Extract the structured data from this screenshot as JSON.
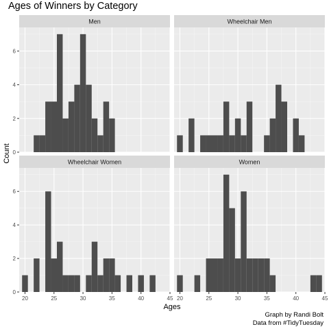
{
  "chart_data": {
    "type": "bar",
    "title": "Ages of Winners by Category",
    "xlabel": "Ages",
    "ylabel": "Count",
    "xlim": [
      19,
      45
    ],
    "ylim": [
      0,
      7.4
    ],
    "x_ticks": [
      20,
      25,
      30,
      35,
      40,
      45
    ],
    "y_ticks": [
      0,
      2,
      4,
      6
    ],
    "grid": true,
    "legend": "none",
    "bar_color": "#4d4d4d",
    "panel_background": "#ebebeb",
    "strip_background": "#d9d9d9",
    "facets": [
      {
        "name": "Men",
        "x": [
          22,
          23,
          24,
          25,
          26,
          27,
          28,
          29,
          30,
          31,
          32,
          33,
          34,
          35
        ],
        "values": [
          1,
          1,
          3,
          3,
          7,
          2,
          3,
          4,
          7,
          4,
          2,
          1,
          3,
          2
        ]
      },
      {
        "name": "Wheelchair Men",
        "x": [
          20,
          22,
          24,
          25,
          26,
          27,
          28,
          29,
          30,
          31,
          32,
          35,
          36,
          37,
          38,
          40,
          41
        ],
        "values": [
          1,
          2,
          1,
          1,
          1,
          1,
          3,
          1,
          2,
          1,
          3,
          1,
          2,
          4,
          3,
          2,
          1
        ]
      },
      {
        "name": "Wheelchair Women",
        "x": [
          20,
          22,
          24,
          25,
          26,
          27,
          28,
          29,
          31,
          32,
          33,
          34,
          35,
          36,
          38,
          40,
          42
        ],
        "values": [
          1,
          2,
          6,
          2,
          3,
          1,
          1,
          1,
          1,
          3,
          1,
          2,
          2,
          1,
          1,
          1,
          1
        ]
      },
      {
        "name": "Women",
        "x": [
          20,
          23,
          25,
          26,
          27,
          28,
          29,
          30,
          31,
          32,
          33,
          34,
          35,
          36,
          43,
          44
        ],
        "values": [
          1,
          1,
          2,
          2,
          2,
          7,
          5,
          2,
          6,
          2,
          2,
          2,
          2,
          1,
          1,
          1
        ]
      }
    ]
  },
  "caption": {
    "line1": "Graph by Randi Bolt",
    "line2": "Data from #TidyTuesday"
  }
}
